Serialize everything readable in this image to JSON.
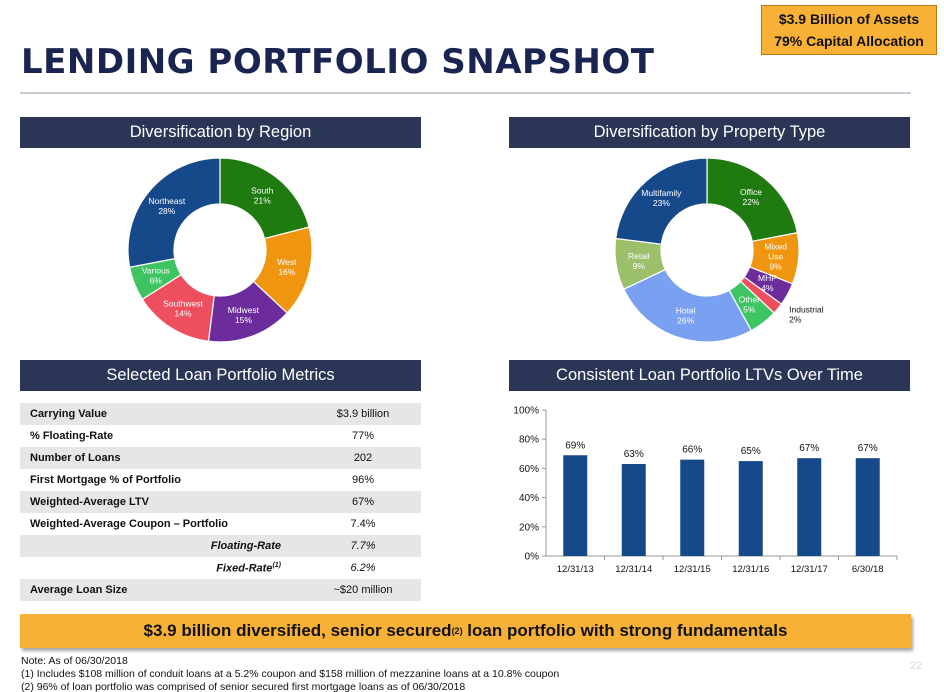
{
  "badge": {
    "line1": "$3.9 Billion of Assets",
    "line2": "79% Capital Allocation"
  },
  "page_title": "LENDING PORTFOLIO SNAPSHOT",
  "region_section": {
    "header": "Diversification by Region"
  },
  "property_section": {
    "header": "Diversification by Property Type"
  },
  "metrics_section": {
    "header": "Selected Loan Portfolio Metrics"
  },
  "ltv_section": {
    "header": "Consistent Loan Portfolio LTVs Over Time"
  },
  "metrics": [
    {
      "label": "Carrying Value",
      "value": "$3.9 billion",
      "shade": true,
      "sub": false
    },
    {
      "label": "% Floating-Rate",
      "value": "77%",
      "shade": false,
      "sub": false
    },
    {
      "label": "Number of Loans",
      "value": "202",
      "shade": true,
      "sub": false
    },
    {
      "label": "First Mortgage % of Portfolio",
      "value": "96%",
      "shade": false,
      "sub": false
    },
    {
      "label": "Weighted-Average LTV",
      "value": "67%",
      "shade": true,
      "sub": false
    },
    {
      "label": "Weighted-Average Coupon – Portfolio",
      "value": "7.4%",
      "shade": false,
      "sub": false
    },
    {
      "label": "Floating-Rate",
      "value": "7.7%",
      "shade": true,
      "sub": true,
      "sup": ""
    },
    {
      "label": "Fixed-Rate",
      "value": "6.2%",
      "shade": false,
      "sub": true,
      "sup": "(1)"
    },
    {
      "label": "Average Loan Size",
      "value": "~$20 million",
      "shade": true,
      "sub": false
    }
  ],
  "banner": {
    "text_before": "$3.9 billion diversified, senior secured",
    "sup": "(2)",
    "text_after": " loan portfolio with strong fundamentals"
  },
  "notes": [
    "Note: As of 06/30/2018",
    "(1) Includes $108 million of conduit loans at a 5.2% coupon and $158 million of mezzanine loans at a 10.8% coupon",
    "(2) 96% of loan portfolio was comprised of senior secured first mortgage loans as of 06/30/2018"
  ],
  "page_number": "22",
  "chart_data": [
    {
      "type": "pie",
      "title": "Diversification by Region",
      "donut": true,
      "slices": [
        {
          "label": "South",
          "value": 21,
          "display": "21%",
          "color": "#1f7a10"
        },
        {
          "label": "West",
          "value": 16,
          "display": "16%",
          "color": "#ef9510"
        },
        {
          "label": "Midwest",
          "value": 15,
          "display": "15%",
          "color": "#6c2c9c"
        },
        {
          "label": "Southwest",
          "value": 14,
          "display": "14%",
          "color": "#ee4f5e"
        },
        {
          "label": "Various",
          "value": 6,
          "display": "6%",
          "color": "#3ec463"
        },
        {
          "label": "Northeast",
          "value": 28,
          "display": "28%",
          "color": "#16498a"
        }
      ]
    },
    {
      "type": "pie",
      "title": "Diversification by Property Type",
      "donut": true,
      "slices": [
        {
          "label": "Office",
          "value": 22,
          "display": "22%",
          "color": "#1f7a10",
          "label_lines": [
            "Office"
          ]
        },
        {
          "label": "Mixed Use",
          "value": 9,
          "display": "9%",
          "color": "#ef9510",
          "label_lines": [
            "Mixed",
            "Use"
          ]
        },
        {
          "label": "MHP",
          "value": 4,
          "display": "4%",
          "color": "#6c2c9c",
          "label_lines": [
            "MHP"
          ]
        },
        {
          "label": "Industrial",
          "value": 2,
          "display": "2%",
          "color": "#ee4f5e",
          "label_lines": [
            "Industrial"
          ],
          "outside": true
        },
        {
          "label": "Other",
          "value": 5,
          "display": "5%",
          "color": "#3ec463",
          "label_lines": [
            "Other"
          ]
        },
        {
          "label": "Hotel",
          "value": 26,
          "display": "26%",
          "color": "#7aa0f2",
          "label_lines": [
            "Hotel"
          ]
        },
        {
          "label": "Retail",
          "value": 9,
          "display": "9%",
          "color": "#9cbf6c",
          "label_lines": [
            "Retail"
          ]
        },
        {
          "label": "Multifamily",
          "value": 23,
          "display": "23%",
          "color": "#16498a",
          "label_lines": [
            "Multifamily"
          ]
        }
      ]
    },
    {
      "type": "bar",
      "title": "Consistent Loan Portfolio LTVs Over Time",
      "categories": [
        "12/31/13",
        "12/31/14",
        "12/31/15",
        "12/31/16",
        "12/31/17",
        "6/30/18"
      ],
      "values": [
        69,
        63,
        66,
        65,
        67,
        67
      ],
      "data_labels": [
        "69%",
        "63%",
        "66%",
        "65%",
        "67%",
        "67%"
      ],
      "ylim": [
        0,
        100
      ],
      "yticks": [
        "0%",
        "20%",
        "40%",
        "60%",
        "80%",
        "100%"
      ],
      "bar_color": "#16498a",
      "grid": false
    }
  ]
}
